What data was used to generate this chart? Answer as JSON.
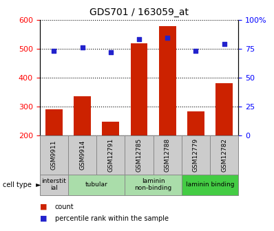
{
  "title": "GDS701 / 163059_at",
  "samples": [
    "GSM9911",
    "GSM9914",
    "GSM12791",
    "GSM12785",
    "GSM12788",
    "GSM12779",
    "GSM12782"
  ],
  "counts": [
    290,
    335,
    247,
    517,
    578,
    282,
    380
  ],
  "percentiles": [
    73,
    76,
    72,
    83,
    84,
    73,
    79
  ],
  "ylim_left": [
    200,
    600
  ],
  "ylim_right": [
    0,
    100
  ],
  "yticks_left": [
    200,
    300,
    400,
    500,
    600
  ],
  "yticks_right": [
    0,
    25,
    50,
    75,
    100
  ],
  "bar_color": "#cc2200",
  "dot_color": "#2222cc",
  "bar_bottom": 200,
  "bar_width": 0.6,
  "cell_types": [
    {
      "label": "interstit\nial",
      "start": 0,
      "end": 1,
      "color": "#cccccc"
    },
    {
      "label": "tubular",
      "start": 1,
      "end": 3,
      "color": "#aaddaa"
    },
    {
      "label": "laminin\nnon-binding",
      "start": 3,
      "end": 5,
      "color": "#aaddaa"
    },
    {
      "label": "laminin binding",
      "start": 5,
      "end": 7,
      "color": "#44cc44"
    }
  ],
  "gsm_box_color": "#cccccc",
  "legend_items": [
    {
      "color": "#cc2200",
      "label": "count"
    },
    {
      "color": "#2222cc",
      "label": "percentile rank within the sample"
    }
  ]
}
